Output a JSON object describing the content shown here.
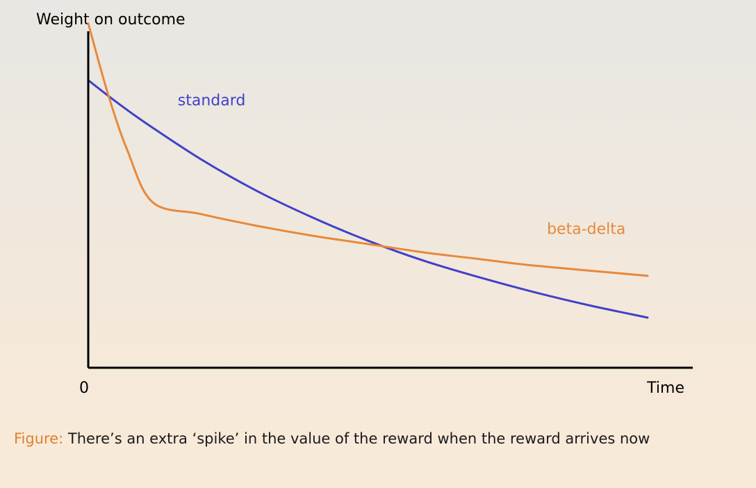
{
  "chart_data": {
    "type": "line",
    "ylabel": "Weight on outcome",
    "xlabel": "Time",
    "x_tick_labels": [
      "0"
    ],
    "xlim": [
      0,
      10
    ],
    "ylim": [
      0,
      10
    ],
    "colors": {
      "standard": "#4040c8",
      "beta_delta": "#e8883a",
      "axis": "#000000"
    },
    "series": [
      {
        "name": "standard",
        "x": [
          0,
          0.5,
          1,
          2,
          3,
          4,
          5,
          6,
          7,
          8,
          9,
          10
        ],
        "y": [
          8.6,
          7.95,
          7.35,
          6.25,
          5.3,
          4.5,
          3.8,
          3.2,
          2.7,
          2.25,
          1.85,
          1.5
        ]
      },
      {
        "name": "beta-delta",
        "x": [
          0,
          0.35,
          0.7,
          1.15,
          2,
          3,
          4,
          5,
          6,
          7,
          8,
          10
        ],
        "y": [
          10.3,
          8.2,
          6.5,
          4.95,
          4.6,
          4.25,
          3.95,
          3.7,
          3.45,
          3.25,
          3.05,
          2.75
        ]
      }
    ],
    "annotations": [
      {
        "text": "standard",
        "series": "standard",
        "x": 1.6,
        "y": 7.85
      },
      {
        "text": "beta-delta",
        "series": "beta-delta",
        "x": 8.2,
        "y": 4.0
      }
    ]
  },
  "caption": {
    "prefix": "Figure:",
    "text": " There’s an extra ‘spike’ in the value of the reward when the reward arrives now"
  }
}
